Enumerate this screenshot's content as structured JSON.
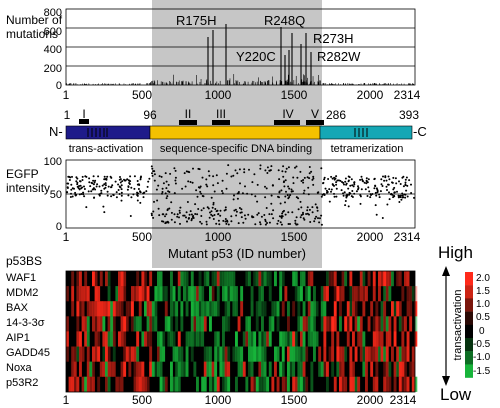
{
  "mutations_panel": {
    "ylabel_line1": "Number of",
    "ylabel_line2": "mutations",
    "yticks": [
      "800",
      "600",
      "400",
      "200",
      "0"
    ],
    "xticks": [
      "1",
      "500",
      "1000",
      "1500",
      "2000",
      "2314"
    ],
    "hotspots": [
      "R175H",
      "R248Q",
      "Y220C",
      "R273H",
      "R282W"
    ]
  },
  "domain_map": {
    "n_term": "N-",
    "c_term": "-C",
    "pos_start": "1",
    "pos_96": "96",
    "pos_286": "286",
    "pos_393": "393",
    "roman": [
      "I",
      "II",
      "III",
      "IV",
      "V"
    ],
    "domains": {
      "transactivation": "trans-activation",
      "dna_binding": "sequence-specific DNA binding",
      "tetramerization": "tetramerization"
    },
    "colors": {
      "transactivation": "#1e1b8a",
      "dna_binding": "#f4c100",
      "tetramerization": "#15a7b5"
    }
  },
  "egfp_panel": {
    "ylabel_line1": "EGFP",
    "ylabel_line2": "intensity",
    "yticks": [
      "100",
      "50",
      "0"
    ],
    "xticks": [
      "1",
      "500",
      "1000",
      "1500",
      "2000",
      "2314"
    ],
    "xlabel": "Mutant p53 (ID number)"
  },
  "heatmap_panel": {
    "title": "p53BS",
    "rows": [
      "WAF1",
      "MDM2",
      "BAX",
      "14-3-3σ",
      "AIP1",
      "GADD45",
      "Noxa",
      "p53R2"
    ],
    "xticks": [
      "1",
      "500",
      "1000",
      "1500",
      "2000",
      "2314"
    ],
    "legend_high": "High",
    "legend_low": "Low",
    "legend_label": "transactivation",
    "legend_ticks": [
      "2.0",
      "1.5",
      "1.0",
      "0.5",
      "0",
      "-0.5",
      "-1.0",
      "-1.5"
    ],
    "colors": {
      "high": "#ff2a1a",
      "mid": "#000000",
      "low": "#17b43a"
    }
  }
}
